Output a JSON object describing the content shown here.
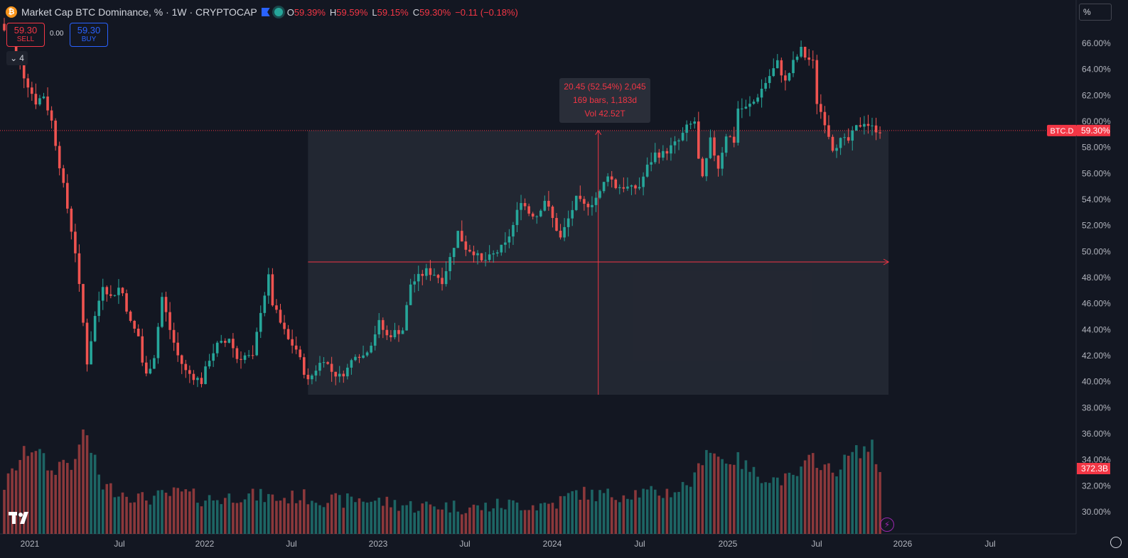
{
  "header": {
    "title": "Market Cap BTC Dominance, % · 1W · CRYPTOCAP",
    "ohlc": [
      {
        "key": "O",
        "value": "59.39%"
      },
      {
        "key": "H",
        "value": "59.59%"
      },
      {
        "key": "L",
        "value": "59.15%"
      },
      {
        "key": "C",
        "value": "59.30%"
      }
    ],
    "change": "−0.11 (−0.18%)"
  },
  "trade": {
    "sell_price": "59.30",
    "sell_label": "SELL",
    "spread": "0.00",
    "buy_price": "59.30",
    "buy_label": "BUY"
  },
  "indicators_count": "4",
  "axis_unit": "%",
  "price_tag": {
    "symbol": "BTC.D",
    "value": "59.30%"
  },
  "volume_tag": "372.3B",
  "measure": {
    "line1": "20.45 (52.54%) 2,045",
    "line2": "169 bars, 1,183d",
    "line3": "Vol 42.52T"
  },
  "colors": {
    "up": "#26a69a",
    "down": "#ef5350",
    "background": "#131722",
    "measure": "#f23645"
  },
  "chart_data": {
    "type": "candlestick",
    "yaxis_ticks": [
      "66.00%",
      "64.00%",
      "62.00%",
      "60.00%",
      "58.00%",
      "56.00%",
      "54.00%",
      "52.00%",
      "50.00%",
      "48.00%",
      "46.00%",
      "44.00%",
      "42.00%",
      "40.00%",
      "38.00%",
      "36.00%",
      "34.00%",
      "32.00%",
      "30.00%"
    ],
    "xaxis_ticks": [
      "2021",
      "Jul",
      "2022",
      "Jul",
      "2023",
      "Jul",
      "2024",
      "Jul",
      "2025",
      "Jul",
      "2026",
      "Jul"
    ],
    "last_close": 59.3,
    "close_path": [
      [
        0,
        67.0
      ],
      [
        2,
        66.0
      ],
      [
        5,
        63.5
      ],
      [
        8,
        61.5
      ],
      [
        10,
        62.0
      ],
      [
        12,
        60.0
      ],
      [
        15,
        55.0
      ],
      [
        18,
        50.0
      ],
      [
        20,
        44.5
      ],
      [
        21,
        41.5
      ],
      [
        23,
        45.0
      ],
      [
        25,
        47.5
      ],
      [
        27,
        46.5
      ],
      [
        29,
        47.2
      ],
      [
        30,
        46.8
      ],
      [
        32,
        44.5
      ],
      [
        34,
        43.5
      ],
      [
        35,
        41.5
      ],
      [
        36,
        40.5
      ],
      [
        38,
        42.0
      ],
      [
        40,
        46.5
      ],
      [
        42,
        44.0
      ],
      [
        44,
        42.0
      ],
      [
        46,
        40.8
      ],
      [
        48,
        40.4
      ],
      [
        50,
        40.0
      ],
      [
        52,
        41.8
      ],
      [
        54,
        42.8
      ],
      [
        56,
        43.0
      ],
      [
        57,
        43.4
      ],
      [
        59,
        41.8
      ],
      [
        61,
        42.0
      ],
      [
        63,
        41.8
      ],
      [
        65,
        45.5
      ],
      [
        67,
        48.0
      ],
      [
        68,
        46.0
      ],
      [
        70,
        44.5
      ],
      [
        72,
        43.2
      ],
      [
        74,
        42.5
      ],
      [
        76,
        40.8
      ],
      [
        77,
        40.0
      ],
      [
        79,
        41.0
      ],
      [
        81,
        41.8
      ],
      [
        83,
        40.8
      ],
      [
        85,
        40.4
      ],
      [
        87,
        41.0
      ],
      [
        89,
        42.2
      ],
      [
        91,
        42.0
      ],
      [
        93,
        43.0
      ],
      [
        95,
        44.5
      ],
      [
        97,
        43.5
      ],
      [
        99,
        43.8
      ],
      [
        101,
        44.0
      ],
      [
        103,
        47.5
      ],
      [
        105,
        48.0
      ],
      [
        107,
        48.5
      ],
      [
        109,
        48.3
      ],
      [
        111,
        47.8
      ],
      [
        113,
        49.5
      ],
      [
        115,
        51.5
      ],
      [
        117,
        50.3
      ],
      [
        119,
        50.0
      ],
      [
        121,
        49.2
      ],
      [
        123,
        49.5
      ],
      [
        125,
        50.0
      ],
      [
        127,
        50.5
      ],
      [
        129,
        52.0
      ],
      [
        131,
        54.0
      ],
      [
        133,
        53.0
      ],
      [
        135,
        52.8
      ],
      [
        137,
        54.0
      ],
      [
        139,
        52.5
      ],
      [
        141,
        51.0
      ],
      [
        143,
        52.5
      ],
      [
        145,
        54.0
      ],
      [
        147,
        53.5
      ],
      [
        149,
        53.8
      ],
      [
        151,
        54.5
      ],
      [
        153,
        56.0
      ],
      [
        155,
        55.0
      ],
      [
        157,
        55.0
      ],
      [
        159,
        54.8
      ],
      [
        161,
        55.0
      ],
      [
        163,
        56.5
      ],
      [
        165,
        57.5
      ],
      [
        167,
        57.5
      ],
      [
        169,
        58.0
      ],
      [
        171,
        58.5
      ],
      [
        173,
        59.5
      ],
      [
        175,
        60.0
      ],
      [
        176,
        57.0
      ],
      [
        177,
        55.5
      ],
      [
        179,
        58.5
      ],
      [
        181,
        56.5
      ],
      [
        183,
        59.0
      ],
      [
        185,
        58.5
      ],
      [
        186,
        61.0
      ],
      [
        188,
        61.0
      ],
      [
        190,
        61.5
      ],
      [
        192,
        62.5
      ],
      [
        194,
        63.5
      ],
      [
        196,
        64.5
      ],
      [
        198,
        63.0
      ],
      [
        200,
        64.5
      ],
      [
        202,
        65.5
      ],
      [
        203,
        65.0
      ],
      [
        205,
        64.5
      ],
      [
        206,
        61.5
      ],
      [
        208,
        60.0
      ],
      [
        210,
        58.0
      ],
      [
        212,
        58.5
      ],
      [
        214,
        58.5
      ],
      [
        216,
        59.5
      ],
      [
        218,
        60.0
      ],
      [
        220,
        59.5
      ],
      [
        222,
        59.3
      ]
    ],
    "volume_path": [
      [
        0,
        32
      ],
      [
        5,
        34.5
      ],
      [
        8,
        35
      ],
      [
        12,
        33
      ],
      [
        15,
        34
      ],
      [
        18,
        33.5
      ],
      [
        20,
        36.5
      ],
      [
        25,
        32
      ],
      [
        30,
        31.5
      ],
      [
        35,
        31
      ],
      [
        40,
        31.2
      ],
      [
        45,
        31.5
      ],
      [
        50,
        31
      ],
      [
        55,
        31
      ],
      [
        60,
        31.3
      ],
      [
        65,
        31.2
      ],
      [
        70,
        31
      ],
      [
        75,
        31.2
      ],
      [
        80,
        31
      ],
      [
        85,
        30.8
      ],
      [
        90,
        31
      ],
      [
        95,
        30.8
      ],
      [
        100,
        30.6
      ],
      [
        105,
        30.4
      ],
      [
        110,
        30.5
      ],
      [
        115,
        30.4
      ],
      [
        120,
        30.3
      ],
      [
        125,
        30.5
      ],
      [
        130,
        30.6
      ],
      [
        135,
        30.5
      ],
      [
        140,
        30.7
      ],
      [
        145,
        31.5
      ],
      [
        150,
        31.3
      ],
      [
        155,
        31.3
      ],
      [
        160,
        31.5
      ],
      [
        165,
        31.4
      ],
      [
        170,
        31.6
      ],
      [
        175,
        32.5
      ],
      [
        178,
        35
      ],
      [
        182,
        34
      ],
      [
        186,
        34
      ],
      [
        190,
        33
      ],
      [
        195,
        32.5
      ],
      [
        200,
        32.5
      ],
      [
        205,
        34.2
      ],
      [
        210,
        33
      ],
      [
        215,
        34.5
      ],
      [
        220,
        35
      ],
      [
        222,
        33
      ]
    ],
    "measure": {
      "from_index": 77,
      "to_index": 222,
      "low": 39.0,
      "high": 59.3,
      "mid": 49.2
    }
  }
}
